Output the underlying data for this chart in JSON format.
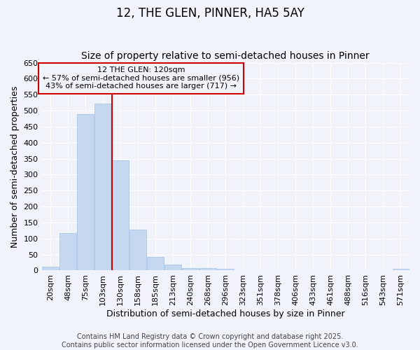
{
  "title": "12, THE GLEN, PINNER, HA5 5AY",
  "subtitle": "Size of property relative to semi-detached houses in Pinner",
  "xlabel": "Distribution of semi-detached houses by size in Pinner",
  "ylabel": "Number of semi-detached properties",
  "categories": [
    "20sqm",
    "48sqm",
    "75sqm",
    "103sqm",
    "130sqm",
    "158sqm",
    "185sqm",
    "213sqm",
    "240sqm",
    "268sqm",
    "296sqm",
    "323sqm",
    "351sqm",
    "378sqm",
    "406sqm",
    "433sqm",
    "461sqm",
    "488sqm",
    "516sqm",
    "543sqm",
    "571sqm"
  ],
  "values": [
    11,
    117,
    490,
    523,
    344,
    127,
    42,
    18,
    8,
    7,
    5,
    0,
    0,
    0,
    0,
    0,
    0,
    0,
    0,
    0,
    5
  ],
  "bar_color": "#c5d8f0",
  "bar_edge_color": "#a0c0e8",
  "vline_index": 4,
  "vline_color": "#cc0000",
  "property_label": "12 THE GLEN: 120sqm",
  "smaller_label": "← 57% of semi-detached houses are smaller (956)",
  "larger_label": "43% of semi-detached houses are larger (717) →",
  "annotation_box_color": "#cc0000",
  "footer_line1": "Contains HM Land Registry data © Crown copyright and database right 2025.",
  "footer_line2": "Contains public sector information licensed under the Open Government Licence v3.0.",
  "ylim": [
    0,
    650
  ],
  "yticks": [
    0,
    50,
    100,
    150,
    200,
    250,
    300,
    350,
    400,
    450,
    500,
    550,
    600,
    650
  ],
  "background_color": "#f0f4fa",
  "grid_color": "#ffffff",
  "title_fontsize": 12,
  "subtitle_fontsize": 10,
  "axis_label_fontsize": 9,
  "tick_fontsize": 8,
  "annotation_fontsize": 8,
  "footer_fontsize": 7
}
